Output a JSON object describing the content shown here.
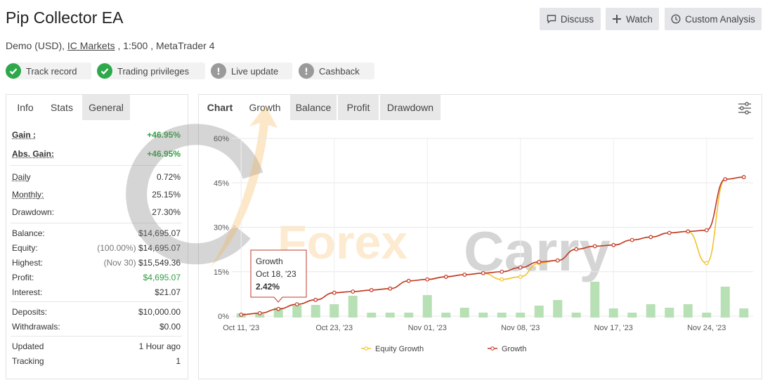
{
  "header": {
    "title": "Pip Collector EA",
    "account": "Demo (USD),",
    "broker": "IC Markets",
    "details": ", 1:500 , MetaTrader 4"
  },
  "buttons": [
    "Discuss",
    "Watch",
    "Custom Analysis"
  ],
  "badges": [
    {
      "label": "Track record",
      "status": "ok"
    },
    {
      "label": "Trading privileges",
      "status": "ok"
    },
    {
      "label": "Live update",
      "status": "warn"
    },
    {
      "label": "Cashback",
      "status": "warn"
    }
  ],
  "left_tabs": [
    "Info",
    "Stats",
    "General"
  ],
  "stats": [
    [
      {
        "label": "Gain :",
        "value": "+46.95%"
      },
      {
        "label": "Abs. Gain:",
        "value": "+46.95%"
      }
    ],
    [
      {
        "label": "Daily",
        "value": "0.72%"
      },
      {
        "label": "Monthly:",
        "value": "25.15%"
      },
      {
        "label": "Drawdown:",
        "value": "27.30%"
      }
    ],
    [
      {
        "label": "Balance:",
        "value": "$14,695.07"
      },
      {
        "label": "Equity:",
        "note": "(100.00%)",
        "value": "$14,695.07"
      },
      {
        "label": "Highest:",
        "note": "(Nov 30)",
        "value": "$15,549.36"
      },
      {
        "label": "Profit:",
        "value": "$4,695.07"
      },
      {
        "label": "Interest:",
        "value": "$21.07"
      }
    ],
    [
      {
        "label": "Deposits:",
        "value": "$10,000.00"
      },
      {
        "label": "Withdrawals:",
        "value": "$0.00"
      }
    ],
    [
      {
        "label": "Updated",
        "value": "1 Hour ago"
      },
      {
        "label": "Tracking",
        "value": "1"
      }
    ]
  ],
  "chart_tabs": [
    "Chart",
    "Growth",
    "Balance",
    "Profit",
    "Drawdown"
  ],
  "watermark": [
    "Forex",
    "Carry"
  ],
  "chart_data": {
    "type": "line",
    "categories": [
      "Oct 11, '23",
      null,
      null,
      null,
      null,
      "Oct 23, '23",
      null,
      null,
      null,
      null,
      "Nov 01, '23",
      null,
      null,
      null,
      null,
      "Nov 08, '23",
      null,
      null,
      null,
      null,
      "Nov 17, '23",
      null,
      null,
      null,
      null,
      "Nov 24, '23",
      null,
      null
    ],
    "series": [
      {
        "name": "Equity Growth",
        "color": "#f2c12e",
        "values": [
          0.5,
          1,
          2.42,
          4,
          5.5,
          7.9,
          8.3,
          8.8,
          9.3,
          11.9,
          12.4,
          13.3,
          14,
          14.5,
          12.4,
          13.3,
          17.9,
          18.8,
          22.6,
          23.6,
          24,
          25.7,
          26.7,
          28.1,
          28.6,
          17.9,
          46.2,
          46.95
        ]
      },
      {
        "name": "Growth",
        "color": "#c0392b",
        "values": [
          0.5,
          1,
          2.42,
          4,
          5.5,
          7.9,
          8.3,
          8.8,
          9.3,
          11.9,
          12.4,
          13.3,
          14,
          14.5,
          15,
          16.4,
          18.3,
          18.8,
          22.6,
          23.6,
          24,
          25.7,
          26.7,
          28.1,
          28.6,
          29,
          46.2,
          46.95
        ]
      }
    ],
    "bar_color": "#b7e0b5",
    "bar_values": [
      6,
      5,
      14,
      18,
      18,
      19,
      31,
      7,
      7,
      7,
      32,
      7,
      14,
      7,
      7,
      7,
      17,
      25,
      7,
      51,
      13,
      7,
      19,
      14,
      19,
      7,
      44,
      13
    ],
    "ylim": [
      0,
      60
    ],
    "yticks": [
      {
        "value": 0,
        "label": "0%"
      },
      {
        "value": 15,
        "label": "15%"
      },
      {
        "value": 30,
        "label": "30%"
      },
      {
        "value": 45,
        "label": "45%"
      },
      {
        "value": 60,
        "label": "60%"
      }
    ],
    "grid": true,
    "legend": "bottom",
    "tooltip": {
      "series": "Growth",
      "date": "Oct 18, '23",
      "value": "2.42%"
    }
  }
}
